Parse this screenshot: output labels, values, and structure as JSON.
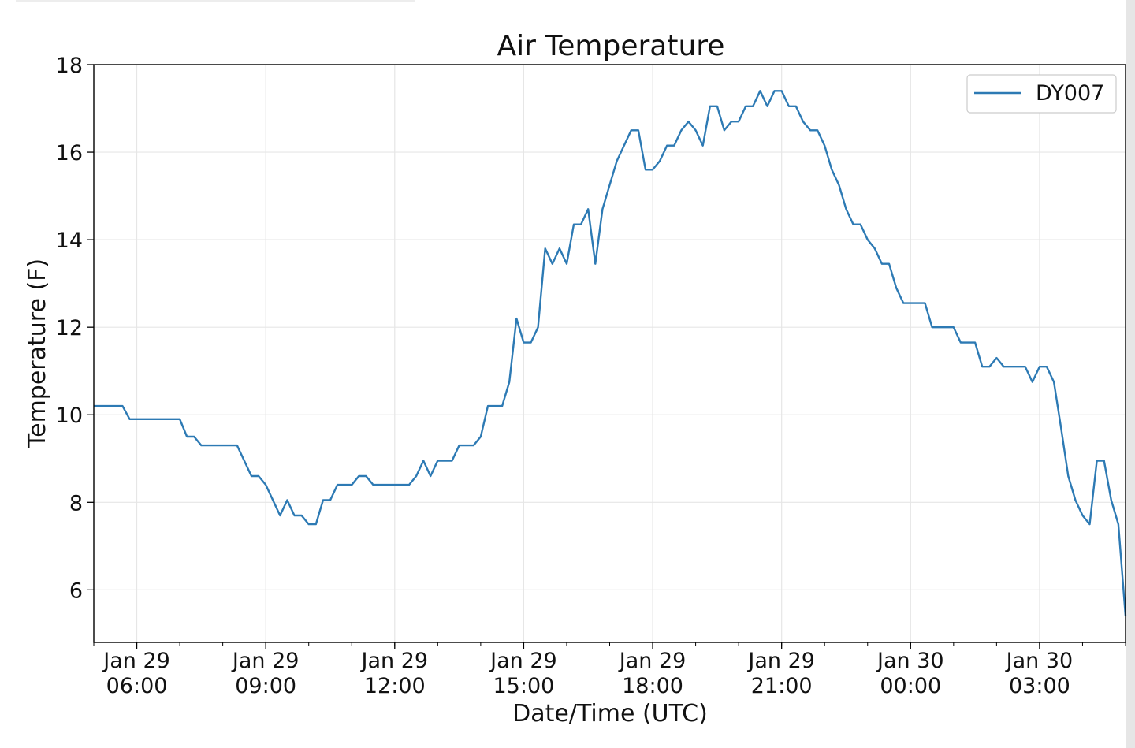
{
  "chart_data": {
    "type": "line",
    "title": "Air Temperature",
    "xlabel": "Date/Time (UTC)",
    "ylabel": "Temperature (F)",
    "ylim": [
      4.8,
      18
    ],
    "xlim": [
      "2019-01-29T05:00",
      "2019-01-30T05:00"
    ],
    "grid": true,
    "legend_position": "top-right",
    "colors": {
      "series": "#2d7ab4",
      "grid": "#e6e6e6",
      "axis": "#000000"
    },
    "y_ticks": [
      {
        "value": 6,
        "label": "6"
      },
      {
        "value": 8,
        "label": "8"
      },
      {
        "value": 10,
        "label": "10"
      },
      {
        "value": 12,
        "label": "12"
      },
      {
        "value": 14,
        "label": "14"
      },
      {
        "value": 16,
        "label": "16"
      },
      {
        "value": 18,
        "label": "18"
      }
    ],
    "x_ticks": [
      {
        "value": "2019-01-29T06:00",
        "line1": "Jan 29",
        "line2": "06:00"
      },
      {
        "value": "2019-01-29T09:00",
        "line1": "Jan 29",
        "line2": "09:00"
      },
      {
        "value": "2019-01-29T12:00",
        "line1": "Jan 29",
        "line2": "12:00"
      },
      {
        "value": "2019-01-29T15:00",
        "line1": "Jan 29",
        "line2": "15:00"
      },
      {
        "value": "2019-01-29T18:00",
        "line1": "Jan 29",
        "line2": "18:00"
      },
      {
        "value": "2019-01-29T21:00",
        "line1": "Jan 29",
        "line2": "21:00"
      },
      {
        "value": "2019-01-30T00:00",
        "line1": "Jan 30",
        "line2": "00:00"
      },
      {
        "value": "2019-01-30T03:00",
        "line1": "Jan 30",
        "line2": "03:00"
      }
    ],
    "series": [
      {
        "name": "DY007",
        "points": [
          [
            "2019-01-29T05:00",
            10.2
          ],
          [
            "2019-01-29T05:40",
            10.2
          ],
          [
            "2019-01-29T05:50",
            9.9
          ],
          [
            "2019-01-29T07:00",
            9.9
          ],
          [
            "2019-01-29T07:10",
            9.5
          ],
          [
            "2019-01-29T07:20",
            9.5
          ],
          [
            "2019-01-29T07:30",
            9.3
          ],
          [
            "2019-01-29T08:20",
            9.3
          ],
          [
            "2019-01-29T08:40",
            8.6
          ],
          [
            "2019-01-29T08:50",
            8.6
          ],
          [
            "2019-01-29T09:00",
            8.4
          ],
          [
            "2019-01-29T09:20",
            7.7
          ],
          [
            "2019-01-29T09:30",
            8.05
          ],
          [
            "2019-01-29T09:40",
            7.7
          ],
          [
            "2019-01-29T09:50",
            7.7
          ],
          [
            "2019-01-29T10:00",
            7.5
          ],
          [
            "2019-01-29T10:10",
            7.5
          ],
          [
            "2019-01-29T10:20",
            8.05
          ],
          [
            "2019-01-29T10:30",
            8.05
          ],
          [
            "2019-01-29T10:40",
            8.4
          ],
          [
            "2019-01-29T11:00",
            8.4
          ],
          [
            "2019-01-29T11:10",
            8.6
          ],
          [
            "2019-01-29T11:20",
            8.6
          ],
          [
            "2019-01-29T11:30",
            8.4
          ],
          [
            "2019-01-29T12:20",
            8.4
          ],
          [
            "2019-01-29T12:30",
            8.6
          ],
          [
            "2019-01-29T12:40",
            8.95
          ],
          [
            "2019-01-29T12:50",
            8.6
          ],
          [
            "2019-01-29T13:00",
            8.95
          ],
          [
            "2019-01-29T13:20",
            8.95
          ],
          [
            "2019-01-29T13:30",
            9.3
          ],
          [
            "2019-01-29T13:50",
            9.3
          ],
          [
            "2019-01-29T14:00",
            9.5
          ],
          [
            "2019-01-29T14:10",
            10.2
          ],
          [
            "2019-01-29T14:30",
            10.2
          ],
          [
            "2019-01-29T14:40",
            10.75
          ],
          [
            "2019-01-29T14:50",
            12.2
          ],
          [
            "2019-01-29T15:00",
            11.65
          ],
          [
            "2019-01-29T15:10",
            11.65
          ],
          [
            "2019-01-29T15:20",
            12.0
          ],
          [
            "2019-01-29T15:30",
            13.8
          ],
          [
            "2019-01-29T15:40",
            13.45
          ],
          [
            "2019-01-29T15:50",
            13.8
          ],
          [
            "2019-01-29T16:00",
            13.45
          ],
          [
            "2019-01-29T16:10",
            14.35
          ],
          [
            "2019-01-29T16:20",
            14.35
          ],
          [
            "2019-01-29T16:30",
            14.7
          ],
          [
            "2019-01-29T16:40",
            13.45
          ],
          [
            "2019-01-29T16:50",
            14.7
          ],
          [
            "2019-01-29T17:00",
            15.25
          ],
          [
            "2019-01-29T17:10",
            15.8
          ],
          [
            "2019-01-29T17:20",
            16.15
          ],
          [
            "2019-01-29T17:30",
            16.5
          ],
          [
            "2019-01-29T17:40",
            16.5
          ],
          [
            "2019-01-29T17:50",
            15.6
          ],
          [
            "2019-01-29T18:00",
            15.6
          ],
          [
            "2019-01-29T18:10",
            15.8
          ],
          [
            "2019-01-29T18:20",
            16.15
          ],
          [
            "2019-01-29T18:30",
            16.15
          ],
          [
            "2019-01-29T18:40",
            16.5
          ],
          [
            "2019-01-29T18:50",
            16.7
          ],
          [
            "2019-01-29T19:00",
            16.5
          ],
          [
            "2019-01-29T19:10",
            16.15
          ],
          [
            "2019-01-29T19:20",
            17.05
          ],
          [
            "2019-01-29T19:30",
            17.05
          ],
          [
            "2019-01-29T19:40",
            16.5
          ],
          [
            "2019-01-29T19:50",
            16.7
          ],
          [
            "2019-01-29T20:00",
            16.7
          ],
          [
            "2019-01-29T20:10",
            17.05
          ],
          [
            "2019-01-29T20:20",
            17.05
          ],
          [
            "2019-01-29T20:30",
            17.4
          ],
          [
            "2019-01-29T20:40",
            17.05
          ],
          [
            "2019-01-29T20:50",
            17.4
          ],
          [
            "2019-01-29T21:00",
            17.4
          ],
          [
            "2019-01-29T21:10",
            17.05
          ],
          [
            "2019-01-29T21:20",
            17.05
          ],
          [
            "2019-01-29T21:30",
            16.7
          ],
          [
            "2019-01-29T21:40",
            16.5
          ],
          [
            "2019-01-29T21:50",
            16.5
          ],
          [
            "2019-01-29T22:00",
            16.15
          ],
          [
            "2019-01-29T22:10",
            15.6
          ],
          [
            "2019-01-29T22:20",
            15.25
          ],
          [
            "2019-01-29T22:30",
            14.7
          ],
          [
            "2019-01-29T22:40",
            14.35
          ],
          [
            "2019-01-29T22:50",
            14.35
          ],
          [
            "2019-01-29T23:00",
            14.0
          ],
          [
            "2019-01-29T23:10",
            13.8
          ],
          [
            "2019-01-29T23:20",
            13.45
          ],
          [
            "2019-01-29T23:30",
            13.45
          ],
          [
            "2019-01-29T23:40",
            12.9
          ],
          [
            "2019-01-29T23:50",
            12.55
          ],
          [
            "2019-01-30T00:20",
            12.55
          ],
          [
            "2019-01-30T00:30",
            12.0
          ],
          [
            "2019-01-30T01:00",
            12.0
          ],
          [
            "2019-01-30T01:10",
            11.65
          ],
          [
            "2019-01-30T01:30",
            11.65
          ],
          [
            "2019-01-30T01:40",
            11.1
          ],
          [
            "2019-01-30T01:50",
            11.1
          ],
          [
            "2019-01-30T02:00",
            11.3
          ],
          [
            "2019-01-30T02:10",
            11.1
          ],
          [
            "2019-01-30T02:40",
            11.1
          ],
          [
            "2019-01-30T02:50",
            10.75
          ],
          [
            "2019-01-30T03:00",
            11.1
          ],
          [
            "2019-01-30T03:10",
            11.1
          ],
          [
            "2019-01-30T03:20",
            10.75
          ],
          [
            "2019-01-30T03:30",
            9.7
          ],
          [
            "2019-01-30T03:40",
            8.6
          ],
          [
            "2019-01-30T03:50",
            8.05
          ],
          [
            "2019-01-30T04:00",
            7.7
          ],
          [
            "2019-01-30T04:10",
            7.5
          ],
          [
            "2019-01-30T04:20",
            8.95
          ],
          [
            "2019-01-30T04:30",
            8.95
          ],
          [
            "2019-01-30T04:40",
            8.05
          ],
          [
            "2019-01-30T04:50",
            7.5
          ],
          [
            "2019-01-30T05:00",
            5.4
          ]
        ]
      }
    ]
  }
}
